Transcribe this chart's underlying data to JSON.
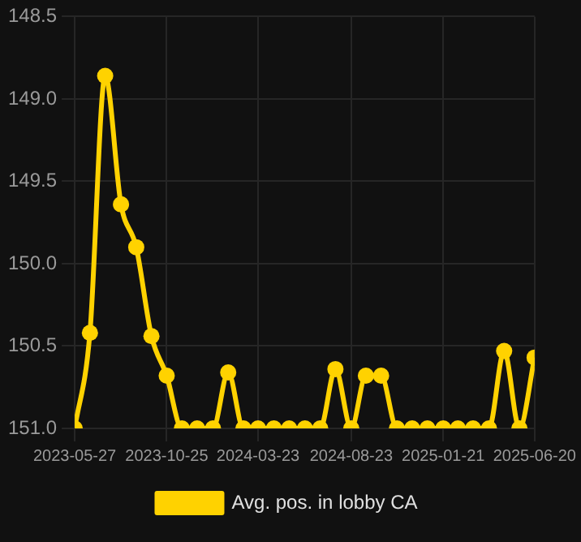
{
  "chart_data": {
    "type": "line",
    "x": [
      "2023-05-27",
      "2023-06-21",
      "2023-07-16",
      "2023-08-11",
      "2023-09-05",
      "2023-09-30",
      "2023-10-25",
      "2023-11-19",
      "2023-12-14",
      "2024-01-09",
      "2024-02-03",
      "2024-02-28",
      "2024-03-23",
      "2024-04-18",
      "2024-05-13",
      "2024-06-08",
      "2024-07-03",
      "2024-07-28",
      "2024-08-23",
      "2024-09-16",
      "2024-10-11",
      "2024-11-06",
      "2024-12-01",
      "2024-12-26",
      "2025-01-21",
      "2025-02-14",
      "2025-03-11",
      "2025-04-06",
      "2025-05-01",
      "2025-05-26",
      "2025-06-20"
    ],
    "series": [
      {
        "name": "Avg. pos. in lobby CA",
        "color": "#ffd200",
        "values": [
          151.0,
          150.42,
          148.86,
          149.64,
          149.9,
          150.44,
          150.68,
          151.0,
          151.0,
          151.0,
          150.66,
          151.0,
          151.0,
          151.0,
          151.0,
          151.0,
          151.0,
          150.64,
          151.0,
          150.68,
          150.68,
          151.0,
          151.0,
          151.0,
          151.0,
          151.0,
          151.0,
          151.0,
          150.53,
          151.0,
          150.57
        ]
      }
    ],
    "ylim": [
      151.0,
      148.5
    ],
    "yticks": [
      {
        "value": 148.5,
        "label": "148.5"
      },
      {
        "value": 149,
        "label": "149.0"
      },
      {
        "value": 149.5,
        "label": "149.5"
      },
      {
        "value": 150,
        "label": "150.0"
      },
      {
        "value": 150.5,
        "label": "150.5"
      },
      {
        "value": 151,
        "label": "151.0"
      }
    ],
    "xlim": [
      "2023-05-27",
      "2025-06-20"
    ],
    "xticks": [
      "2023-05-27",
      "2023-10-25",
      "2024-03-23",
      "2024-08-23",
      "2025-01-21",
      "2025-06-20"
    ],
    "grid": true,
    "legend": "bottom",
    "marker": "circle",
    "line_style": "solid"
  }
}
